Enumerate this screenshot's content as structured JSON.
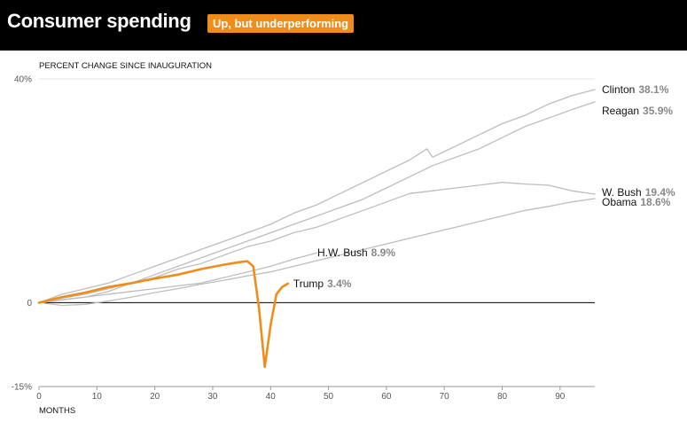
{
  "header": {
    "title": "Consumer spending",
    "badge": "Up, but underperforming"
  },
  "colors": {
    "header_bg": "#000000",
    "accent": "#f08c1a",
    "past_series": "#bdbdbd",
    "grid": "#e6e6e6",
    "zero_line": "#000000"
  },
  "chart_data": {
    "type": "line",
    "title": "Consumer spending",
    "subtitle": "Up, but underperforming",
    "ylabel": "PERCENT CHANGE SINCE INAUGURATION",
    "xlabel": "MONTHS",
    "xlim": [
      0,
      96
    ],
    "ylim": [
      -15,
      40
    ],
    "y_ticks": [
      {
        "value": 40,
        "label": "40%"
      },
      {
        "value": 0,
        "label": "0"
      },
      {
        "value": -15,
        "label": "-15%"
      }
    ],
    "x_ticks": [
      0,
      10,
      20,
      30,
      40,
      50,
      60,
      70,
      80,
      90
    ],
    "grid": "horizontal",
    "series": [
      {
        "name": "Clinton",
        "label_value": "38.1%",
        "highlight": false,
        "x": [
          0,
          4,
          8,
          12,
          16,
          20,
          24,
          28,
          32,
          36,
          40,
          44,
          48,
          52,
          56,
          60,
          64,
          67,
          68,
          70,
          72,
          76,
          80,
          84,
          88,
          92,
          96
        ],
        "y": [
          0,
          1.5,
          2.5,
          3.5,
          5,
          6.5,
          8,
          9.5,
          11,
          12.5,
          14,
          16,
          17.5,
          19.5,
          21.5,
          23.5,
          25.5,
          27.5,
          26,
          27,
          28,
          30,
          32,
          33.5,
          35.5,
          37,
          38.1
        ]
      },
      {
        "name": "Reagan",
        "label_value": "35.9%",
        "highlight": false,
        "x": [
          0,
          4,
          8,
          12,
          16,
          20,
          24,
          28,
          32,
          36,
          40,
          44,
          48,
          52,
          56,
          60,
          64,
          68,
          72,
          76,
          80,
          84,
          88,
          92,
          96
        ],
        "y": [
          0,
          0.5,
          1,
          2,
          3.5,
          5,
          6.5,
          8,
          9.5,
          11,
          12.5,
          14,
          15.5,
          17,
          18.5,
          20.5,
          22.5,
          24.5,
          26,
          27.5,
          29.5,
          31.5,
          33,
          34.5,
          35.9
        ]
      },
      {
        "name": "W. Bush",
        "label_value": "19.4%",
        "highlight": false,
        "x": [
          0,
          4,
          8,
          12,
          16,
          20,
          24,
          28,
          32,
          36,
          40,
          44,
          48,
          52,
          56,
          60,
          64,
          68,
          72,
          76,
          80,
          84,
          88,
          92,
          96
        ],
        "y": [
          0,
          0.8,
          1.5,
          2.5,
          3.5,
          4.5,
          6,
          7,
          8.5,
          10,
          11,
          12.5,
          13.5,
          15,
          16.5,
          18,
          19.5,
          20,
          20.5,
          21,
          21.5,
          21.2,
          21,
          20,
          19.4
        ]
      },
      {
        "name": "Obama",
        "label_value": "18.6%",
        "highlight": false,
        "x": [
          0,
          4,
          8,
          12,
          16,
          20,
          24,
          28,
          32,
          36,
          40,
          44,
          48,
          52,
          56,
          60,
          64,
          68,
          72,
          76,
          80,
          84,
          88,
          92,
          96
        ],
        "y": [
          0,
          -0.5,
          -0.3,
          0.3,
          1,
          1.8,
          2.5,
          3.3,
          4,
          4.8,
          5.5,
          6.5,
          7.5,
          8.5,
          9.5,
          10.5,
          11.5,
          12.5,
          13.5,
          14.5,
          15.5,
          16.5,
          17.2,
          18,
          18.6
        ]
      },
      {
        "name": "H.W. Bush",
        "label_value": "8.9%",
        "highlight": false,
        "x": [
          0,
          4,
          8,
          12,
          16,
          20,
          24,
          28,
          32,
          36,
          40,
          44,
          48
        ],
        "y": [
          0,
          0.5,
          1,
          1.5,
          2,
          2.5,
          3,
          3.5,
          4.5,
          5.5,
          6.5,
          7.8,
          8.9
        ]
      },
      {
        "name": "Trump",
        "label_value": "3.4%",
        "highlight": true,
        "x": [
          0,
          4,
          8,
          12,
          16,
          20,
          24,
          28,
          32,
          35,
          36,
          37,
          38,
          39,
          40,
          41,
          42,
          43
        ],
        "y": [
          0,
          1,
          1.8,
          2.8,
          3.5,
          4.3,
          5,
          6,
          6.8,
          7.3,
          7.4,
          6.5,
          -1,
          -11.5,
          -4,
          1.5,
          2.8,
          3.4
        ]
      }
    ]
  }
}
